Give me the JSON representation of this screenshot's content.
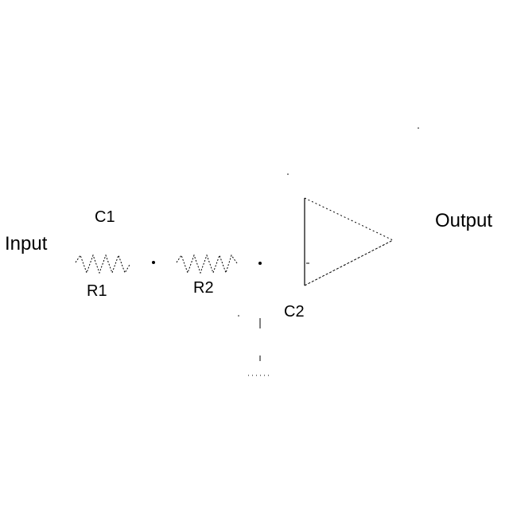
{
  "diagram": {
    "labels": {
      "input": "Input",
      "output": "Output",
      "c1": "C1",
      "r1": "R1",
      "r2": "R2",
      "c2": "C2"
    },
    "components": [
      {
        "id": "R1",
        "kind": "resistor"
      },
      {
        "id": "R2",
        "kind": "resistor"
      },
      {
        "id": "C1",
        "kind": "capacitor"
      },
      {
        "id": "C2",
        "kind": "capacitor"
      },
      {
        "id": "amp",
        "kind": "buffer-amplifier"
      },
      {
        "id": "gnd",
        "kind": "ground"
      }
    ],
    "colors": {
      "stroke": "#000000",
      "background": "#ffffff"
    }
  }
}
